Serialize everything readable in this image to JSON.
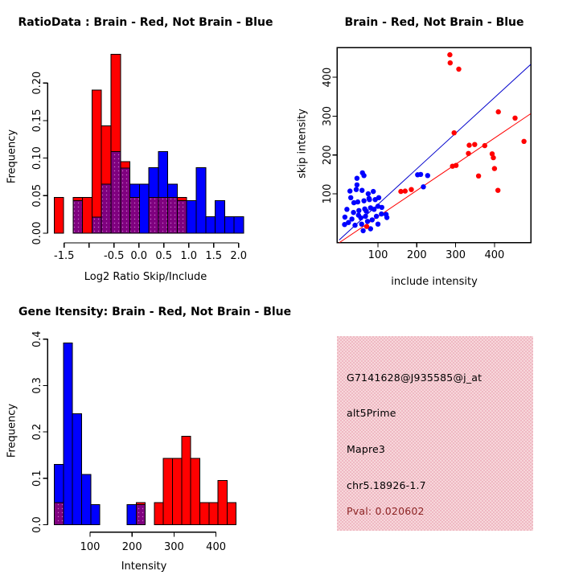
{
  "window": {
    "background": "#ffffff"
  },
  "colors": {
    "red": "#ff0000",
    "blue": "#0000ff",
    "overlap_purple": "#7f017f",
    "overlap_dot": "#c86ac8",
    "fit_line_blue": "#0000cc",
    "fit_line_red": "#ff0000",
    "axis_color": "#000000",
    "info_box_bg_light": "#f7d7db",
    "info_box_bg_dark": "#efb9c3",
    "info_text": "#000000",
    "pval_text": "#8b2323"
  },
  "chart_data": [
    {
      "type": "bar",
      "subtype": "overlaid-histogram",
      "panel": "top-left",
      "title": "RatioData : Brain - Red, Not Brain - Blue",
      "xlabel": "Log2 Ratio Skip/Include",
      "ylabel": "Frequency",
      "xlim": [
        -1.7,
        2.1
      ],
      "ylim": [
        0,
        0.24
      ],
      "bin_start": -1.7,
      "bin_width": 0.19,
      "series": [
        {
          "name": "Brain",
          "color": "red",
          "freq": [
            0.0476,
            0,
            0.0476,
            0.0476,
            0.1905,
            0.1429,
            0.2381,
            0.0952,
            0.0476,
            0,
            0.0476,
            0.0476,
            0.0476,
            0.0476,
            0,
            0,
            0,
            0,
            0,
            0
          ]
        },
        {
          "name": "Not Brain",
          "color": "blue",
          "freq": [
            0,
            0,
            0.0435,
            0,
            0.0217,
            0.0652,
            0.1087,
            0.087,
            0.0652,
            0.0652,
            0.087,
            0.1087,
            0.0652,
            0.0435,
            0.0435,
            0.087,
            0.0217,
            0.0435,
            0.0217,
            0.0217
          ]
        }
      ],
      "overlap_rendering": "purple-min-of-both",
      "x_ticks": [
        {
          "v": -1.5,
          "label": "-1.5"
        },
        {
          "v": -1.0,
          "label": ""
        },
        {
          "v": -0.5,
          "label": "-0.5"
        },
        {
          "v": 0.0,
          "label": "0.0"
        },
        {
          "v": 0.5,
          "label": "0.5"
        },
        {
          "v": 1.0,
          "label": "1.0"
        },
        {
          "v": 1.5,
          "label": "1.5"
        },
        {
          "v": 2.0,
          "label": "2.0"
        }
      ],
      "y_ticks": [
        {
          "v": 0.0,
          "label": "0.00"
        },
        {
          "v": 0.05,
          "label": "0.05"
        },
        {
          "v": 0.1,
          "label": "0.10"
        },
        {
          "v": 0.15,
          "label": "0.15"
        },
        {
          "v": 0.2,
          "label": "0.20"
        }
      ]
    },
    {
      "type": "scatter",
      "panel": "top-right",
      "title": "Brain - Red, Not Brain - Blue",
      "xlabel": "include intensity",
      "ylabel": "skip intensity",
      "xlim": [
        -5,
        495
      ],
      "ylim": [
        -26,
        476
      ],
      "x_ticks": [
        {
          "v": 100,
          "label": "100"
        },
        {
          "v": 200,
          "label": "200"
        },
        {
          "v": 300,
          "label": "300"
        },
        {
          "v": 400,
          "label": "400"
        }
      ],
      "y_ticks": [
        {
          "v": 100,
          "label": "100"
        },
        {
          "v": 200,
          "label": "200"
        },
        {
          "v": 300,
          "label": "300"
        },
        {
          "v": 400,
          "label": "400"
        }
      ],
      "series": [
        {
          "name": "Not Brain",
          "color": "blue",
          "points": [
            [
              46,
              140
            ],
            [
              60,
              154
            ],
            [
              28,
              107
            ],
            [
              44,
              111
            ],
            [
              59,
              109
            ],
            [
              75,
              100
            ],
            [
              48,
              79
            ],
            [
              38,
              77
            ],
            [
              64,
              82
            ],
            [
              78,
              85
            ],
            [
              93,
              85
            ],
            [
              100,
              68
            ],
            [
              81,
              64
            ],
            [
              66,
              61
            ],
            [
              51,
              57
            ],
            [
              37,
              52
            ],
            [
              24,
              26
            ],
            [
              14,
              21
            ],
            [
              41,
              19
            ],
            [
              58,
              22
            ],
            [
              73,
              29
            ],
            [
              85,
              33
            ],
            [
              68,
              42
            ],
            [
              56,
              38
            ],
            [
              96,
              42
            ],
            [
              109,
              48
            ],
            [
              123,
              39
            ],
            [
              100,
              22
            ],
            [
              81,
              10
            ],
            [
              62,
              5
            ],
            [
              102,
              90
            ],
            [
              88,
              106
            ],
            [
              30,
              90
            ],
            [
              20,
              60
            ],
            [
              15,
              40
            ],
            [
              33,
              35
            ],
            [
              50,
              45
            ],
            [
              70,
              55
            ],
            [
              90,
              60
            ],
            [
              110,
              65
            ],
            [
              64,
              147
            ],
            [
              46,
              123
            ],
            [
              77,
              88
            ],
            [
              121,
              47
            ],
            [
              202,
              149
            ],
            [
              210,
              150
            ],
            [
              228,
              147
            ],
            [
              217,
              118
            ]
          ]
        },
        {
          "name": "Brain",
          "color": "red",
          "points": [
            [
              285,
              458
            ],
            [
              286,
              437
            ],
            [
              308,
              421
            ],
            [
              410,
              311
            ],
            [
              453,
              295
            ],
            [
              476,
              235
            ],
            [
              296,
              257
            ],
            [
              335,
              225
            ],
            [
              349,
              227
            ],
            [
              375,
              224
            ],
            [
              333,
              204
            ],
            [
              394,
              203
            ],
            [
              397,
              193
            ],
            [
              400,
              165
            ],
            [
              359,
              146
            ],
            [
              292,
              171
            ],
            [
              301,
              173
            ],
            [
              409,
              109
            ],
            [
              159,
              106
            ],
            [
              170,
              107
            ],
            [
              186,
              111
            ],
            [
              71,
              16
            ]
          ]
        }
      ],
      "fit_lines": [
        {
          "series": "Not Brain",
          "color": "blue",
          "x1": 0,
          "y1": -19,
          "x2": 493,
          "y2": 433
        },
        {
          "series": "Brain",
          "color": "red",
          "x1": 0,
          "y1": -26,
          "x2": 493,
          "y2": 306
        }
      ]
    },
    {
      "type": "bar",
      "subtype": "overlaid-histogram",
      "panel": "bottom-left",
      "title": "Gene Itensity: Brain - Red, Not Brain - Blue",
      "xlabel": "Intensity",
      "ylabel": "Frequency",
      "xlim": [
        15,
        449
      ],
      "ylim": [
        0,
        0.4
      ],
      "bin_start": 15,
      "bin_width": 21.65,
      "series": [
        {
          "name": "Brain",
          "color": "red",
          "freq": [
            0.0476,
            0,
            0,
            0,
            0,
            0,
            0,
            0,
            0,
            0.0476,
            0,
            0.0476,
            0.1429,
            0.1429,
            0.1905,
            0.1429,
            0.0476,
            0.0476,
            0.0952,
            0.0476
          ]
        },
        {
          "name": "Not Brain",
          "color": "blue",
          "freq": [
            0.1304,
            0.3913,
            0.2391,
            0.1087,
            0.0435,
            0,
            0,
            0,
            0.0435,
            0.0435,
            0,
            0,
            0,
            0,
            0,
            0,
            0,
            0,
            0,
            0
          ]
        }
      ],
      "overlap_rendering": "purple-min-of-both",
      "x_ticks": [
        {
          "v": 100,
          "label": "100"
        },
        {
          "v": 200,
          "label": "200"
        },
        {
          "v": 300,
          "label": "300"
        },
        {
          "v": 400,
          "label": "400"
        }
      ],
      "y_ticks": [
        {
          "v": 0.0,
          "label": "0.0"
        },
        {
          "v": 0.1,
          "label": "0.1"
        },
        {
          "v": 0.2,
          "label": "0.2"
        },
        {
          "v": 0.3,
          "label": "0.3"
        },
        {
          "v": 0.4,
          "label": "0.4"
        }
      ]
    }
  ],
  "info_box": {
    "probe_id": "G7141628@J935585@j_at",
    "splice_event": "alt5Prime",
    "gene": "Mapre3",
    "region": "chr5.18926-1.7",
    "pval": "Pval: 0.020602"
  }
}
